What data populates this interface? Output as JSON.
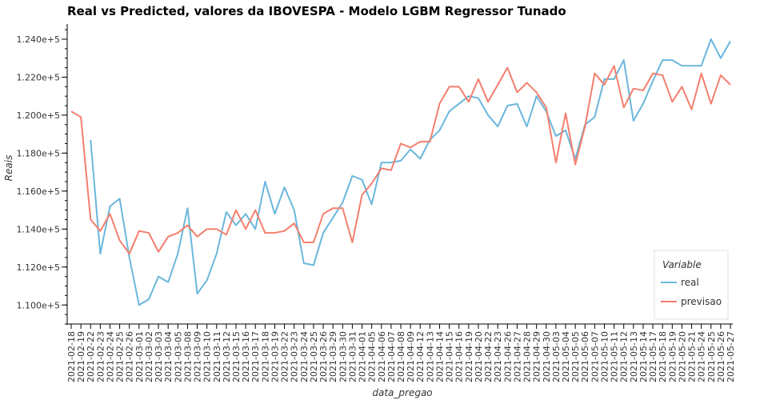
{
  "chart_data": {
    "type": "line",
    "title": "Real vs Predicted, valores da IBOVESPA - Modelo LGBM Regressor Tunado",
    "xlabel": "data_pregao",
    "ylabel": "Reais",
    "ylim": [
      109000,
      124800
    ],
    "yticks": [
      110000,
      112000,
      114000,
      116000,
      118000,
      120000,
      122000,
      124000
    ],
    "ytick_labels": [
      "1.100e+5",
      "1.120e+5",
      "1.140e+5",
      "1.160e+5",
      "1.180e+5",
      "1.200e+5",
      "1.220e+5",
      "1.240e+5"
    ],
    "legend": {
      "title": "Variable",
      "position": "bottom-right"
    },
    "x": [
      "2021-02-18",
      "2021-02-19",
      "2021-02-22",
      "2021-02-23",
      "2021-02-24",
      "2021-02-25",
      "2021-02-26",
      "2021-03-01",
      "2021-03-02",
      "2021-03-03",
      "2021-03-04",
      "2021-03-05",
      "2021-03-08",
      "2021-03-09",
      "2021-03-10",
      "2021-03-11",
      "2021-03-12",
      "2021-03-15",
      "2021-03-16",
      "2021-03-17",
      "2021-03-18",
      "2021-03-19",
      "2021-03-22",
      "2021-03-23",
      "2021-03-24",
      "2021-03-25",
      "2021-03-26",
      "2021-03-29",
      "2021-03-30",
      "2021-03-31",
      "2021-04-01",
      "2021-04-05",
      "2021-04-06",
      "2021-04-07",
      "2021-04-08",
      "2021-04-09",
      "2021-04-12",
      "2021-04-13",
      "2021-04-14",
      "2021-04-15",
      "2021-04-16",
      "2021-04-19",
      "2021-04-20",
      "2021-04-22",
      "2021-04-23",
      "2021-04-26",
      "2021-04-27",
      "2021-04-28",
      "2021-04-29",
      "2021-04-30",
      "2021-05-03",
      "2021-05-04",
      "2021-05-05",
      "2021-05-06",
      "2021-05-07",
      "2021-05-10",
      "2021-05-11",
      "2021-05-12",
      "2021-05-13",
      "2021-05-14",
      "2021-05-17",
      "2021-05-18",
      "2021-05-19",
      "2021-05-20",
      "2021-05-21",
      "2021-05-24",
      "2021-05-25",
      "2021-05-26",
      "2021-05-27"
    ],
    "series": [
      {
        "name": "real",
        "color": "#6ab7dc",
        "values": [
          null,
          null,
          118700,
          112700,
          115200,
          115600,
          112500,
          110000,
          110300,
          111500,
          111200,
          112700,
          115100,
          110600,
          111300,
          112700,
          114900,
          114200,
          114800,
          114000,
          116500,
          114800,
          116200,
          115000,
          112200,
          112100,
          113800,
          114600,
          115400,
          116800,
          116600,
          115300,
          117500,
          117500,
          117600,
          118200,
          117700,
          118700,
          119200,
          120200,
          120600,
          121000,
          120900,
          120000,
          119400,
          120500,
          120600,
          119400,
          121000,
          120200,
          118900,
          119200,
          117700,
          119500,
          119900,
          121900,
          121900,
          122900,
          119700,
          120600,
          121800,
          122900,
          122900,
          122600,
          122600,
          122600,
          124000,
          123000,
          123900
        ]
      },
      {
        "name": "previsao",
        "color": "#f47f6e",
        "values": [
          120200,
          119900,
          114500,
          113900,
          114800,
          113400,
          112700,
          113900,
          113800,
          112800,
          113600,
          113800,
          114200,
          113600,
          114000,
          114000,
          113700,
          115000,
          114000,
          115000,
          113800,
          113800,
          113900,
          114300,
          113300,
          113300,
          114800,
          115100,
          115100,
          113300,
          115800,
          116400,
          117200,
          117100,
          118500,
          118300,
          118600,
          118600,
          120600,
          121500,
          121500,
          120700,
          121900,
          120700,
          121600,
          122500,
          121200,
          121700,
          121200,
          120400,
          117500,
          120100,
          117400,
          119400,
          122200,
          121600,
          122600,
          120400,
          121400,
          121300,
          122200,
          122100,
          120700,
          121500,
          120300,
          122200,
          120600,
          122100,
          121600
        ]
      }
    ]
  }
}
